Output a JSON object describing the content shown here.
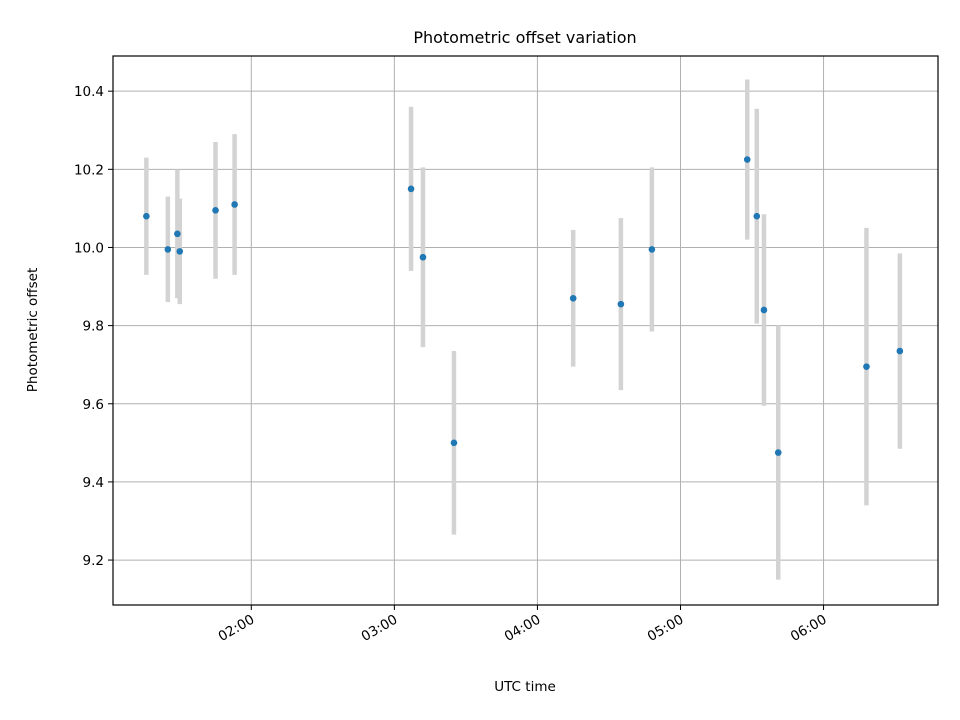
{
  "chart_data": {
    "type": "scatter",
    "title": "Photometric offset variation",
    "xlabel": "UTC time",
    "ylabel": "Photometric offset",
    "x_axis_type": "time",
    "xlim": [
      "01:02",
      "06:48"
    ],
    "ylim": [
      9.085,
      10.49
    ],
    "x_ticks": [
      "02:00",
      "03:00",
      "04:00",
      "05:00",
      "06:00"
    ],
    "y_ticks": [
      "9.2",
      "9.4",
      "9.6",
      "9.8",
      "10.0",
      "10.2",
      "10.4"
    ],
    "grid": true,
    "legend": "none",
    "marker_color": "#1f77b4",
    "errorbar_color": "#d3d3d3",
    "points": [
      {
        "x": "01:16",
        "y": 10.08,
        "yerr": 0.15
      },
      {
        "x": "01:25",
        "y": 9.995,
        "yerr": 0.135
      },
      {
        "x": "01:29",
        "y": 10.035,
        "yerr": 0.165
      },
      {
        "x": "01:30",
        "y": 9.99,
        "yerr": 0.135
      },
      {
        "x": "01:45",
        "y": 10.095,
        "yerr": 0.175
      },
      {
        "x": "01:53",
        "y": 10.11,
        "yerr": 0.18
      },
      {
        "x": "03:07",
        "y": 10.15,
        "yerr": 0.21
      },
      {
        "x": "03:12",
        "y": 9.975,
        "yerr": 0.23
      },
      {
        "x": "03:25",
        "y": 9.5,
        "yerr": 0.235
      },
      {
        "x": "04:15",
        "y": 9.87,
        "yerr": 0.175
      },
      {
        "x": "04:35",
        "y": 9.855,
        "yerr": 0.22
      },
      {
        "x": "04:48",
        "y": 9.995,
        "yerr": 0.21
      },
      {
        "x": "05:28",
        "y": 10.225,
        "yerr": 0.205
      },
      {
        "x": "05:32",
        "y": 10.08,
        "yerr": 0.275
      },
      {
        "x": "05:35",
        "y": 9.84,
        "yerr": 0.245
      },
      {
        "x": "05:41",
        "y": 9.475,
        "yerr": 0.325
      },
      {
        "x": "06:18",
        "y": 9.695,
        "yerr": 0.355
      },
      {
        "x": "06:32",
        "y": 9.735,
        "yerr": 0.25
      }
    ]
  }
}
